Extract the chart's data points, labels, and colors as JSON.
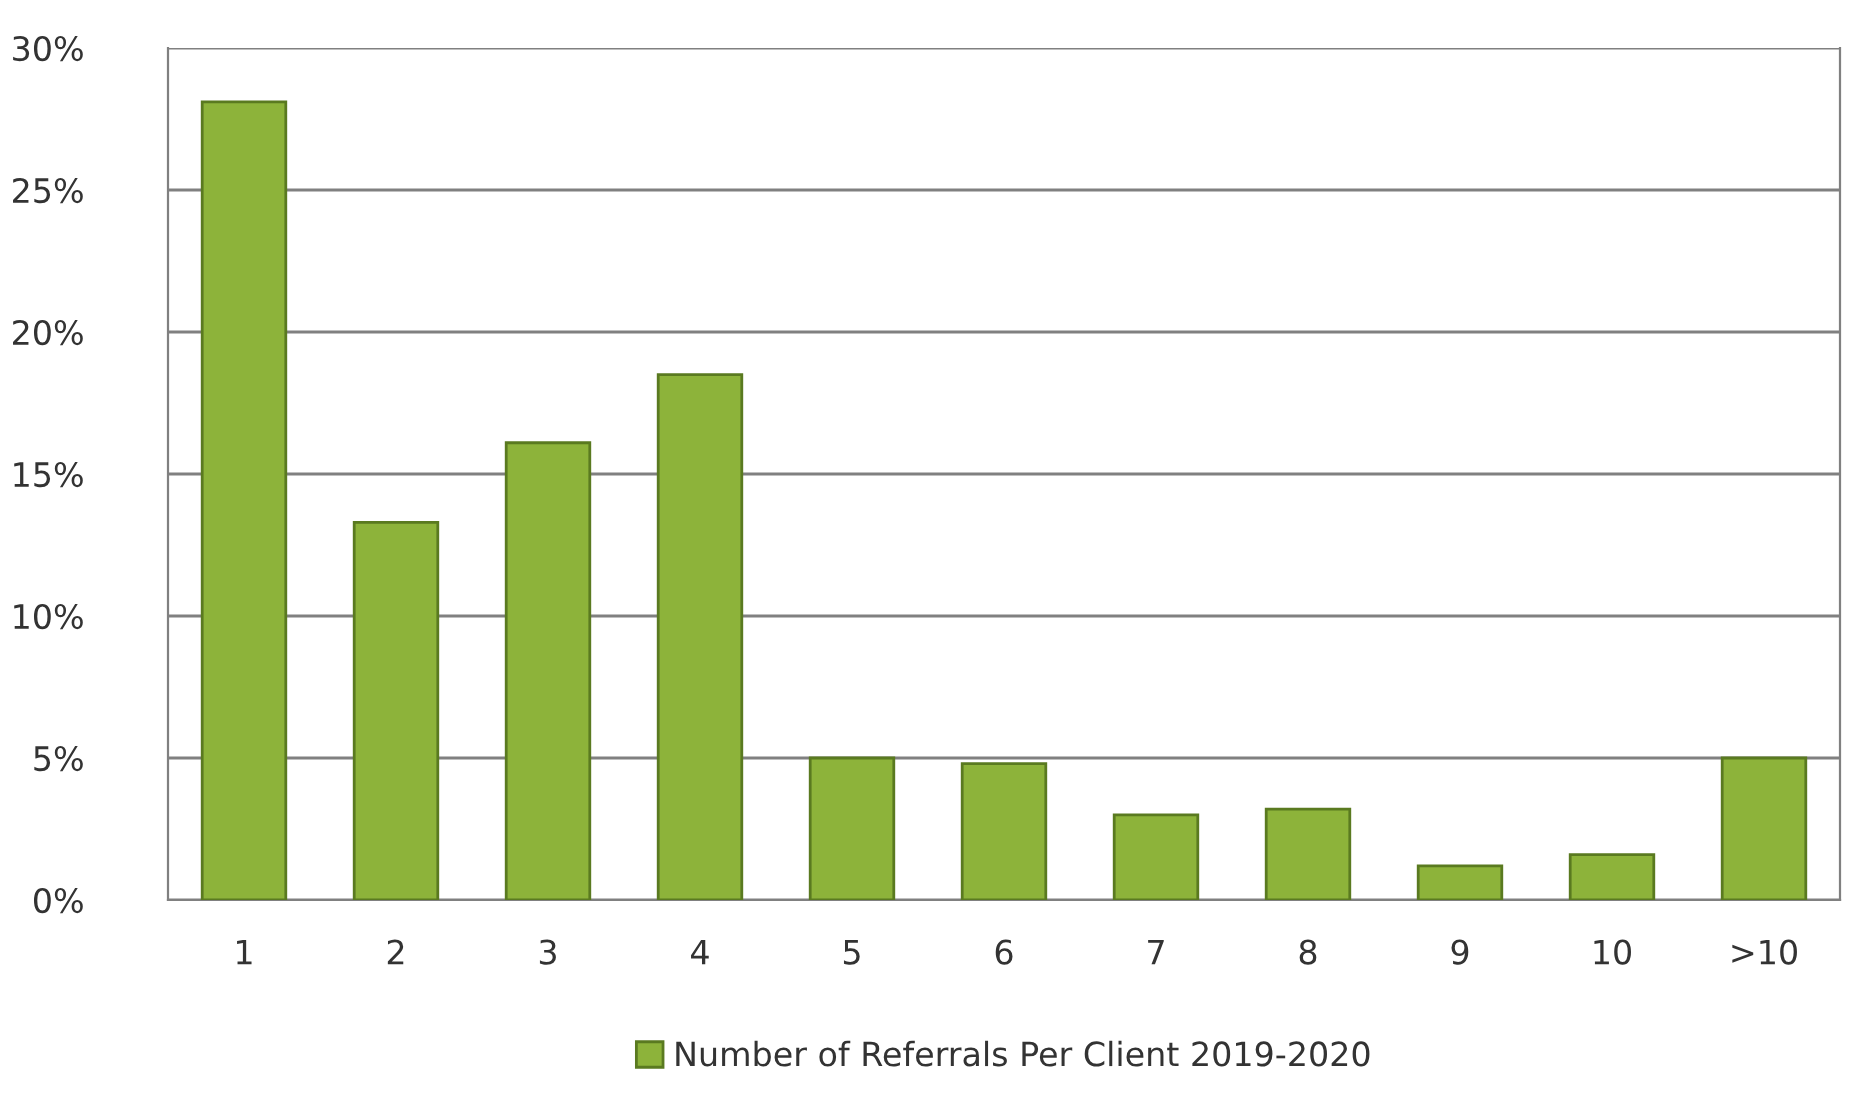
{
  "chart_data": {
    "type": "bar",
    "categories": [
      "1",
      "2",
      "3",
      "4",
      "5",
      "6",
      "7",
      "8",
      "9",
      "10",
      ">10"
    ],
    "series": [
      {
        "name": "Number of Referrals Per Client 2019-2020",
        "color": "#8db33a",
        "values": [
          28.1,
          13.3,
          16.1,
          18.5,
          5.0,
          4.8,
          3.0,
          3.2,
          1.2,
          1.6,
          5.0
        ]
      }
    ],
    "ylim": [
      0,
      30
    ],
    "yticks": [
      {
        "value": 0,
        "label": "0%"
      },
      {
        "value": 5,
        "label": "5%"
      },
      {
        "value": 10,
        "label": "10%"
      },
      {
        "value": 15,
        "label": "15%"
      },
      {
        "value": 20,
        "label": "20%"
      },
      {
        "value": 25,
        "label": "25%"
      },
      {
        "value": 30,
        "label": "30%"
      }
    ],
    "grid": "y",
    "legend": "bottom"
  }
}
